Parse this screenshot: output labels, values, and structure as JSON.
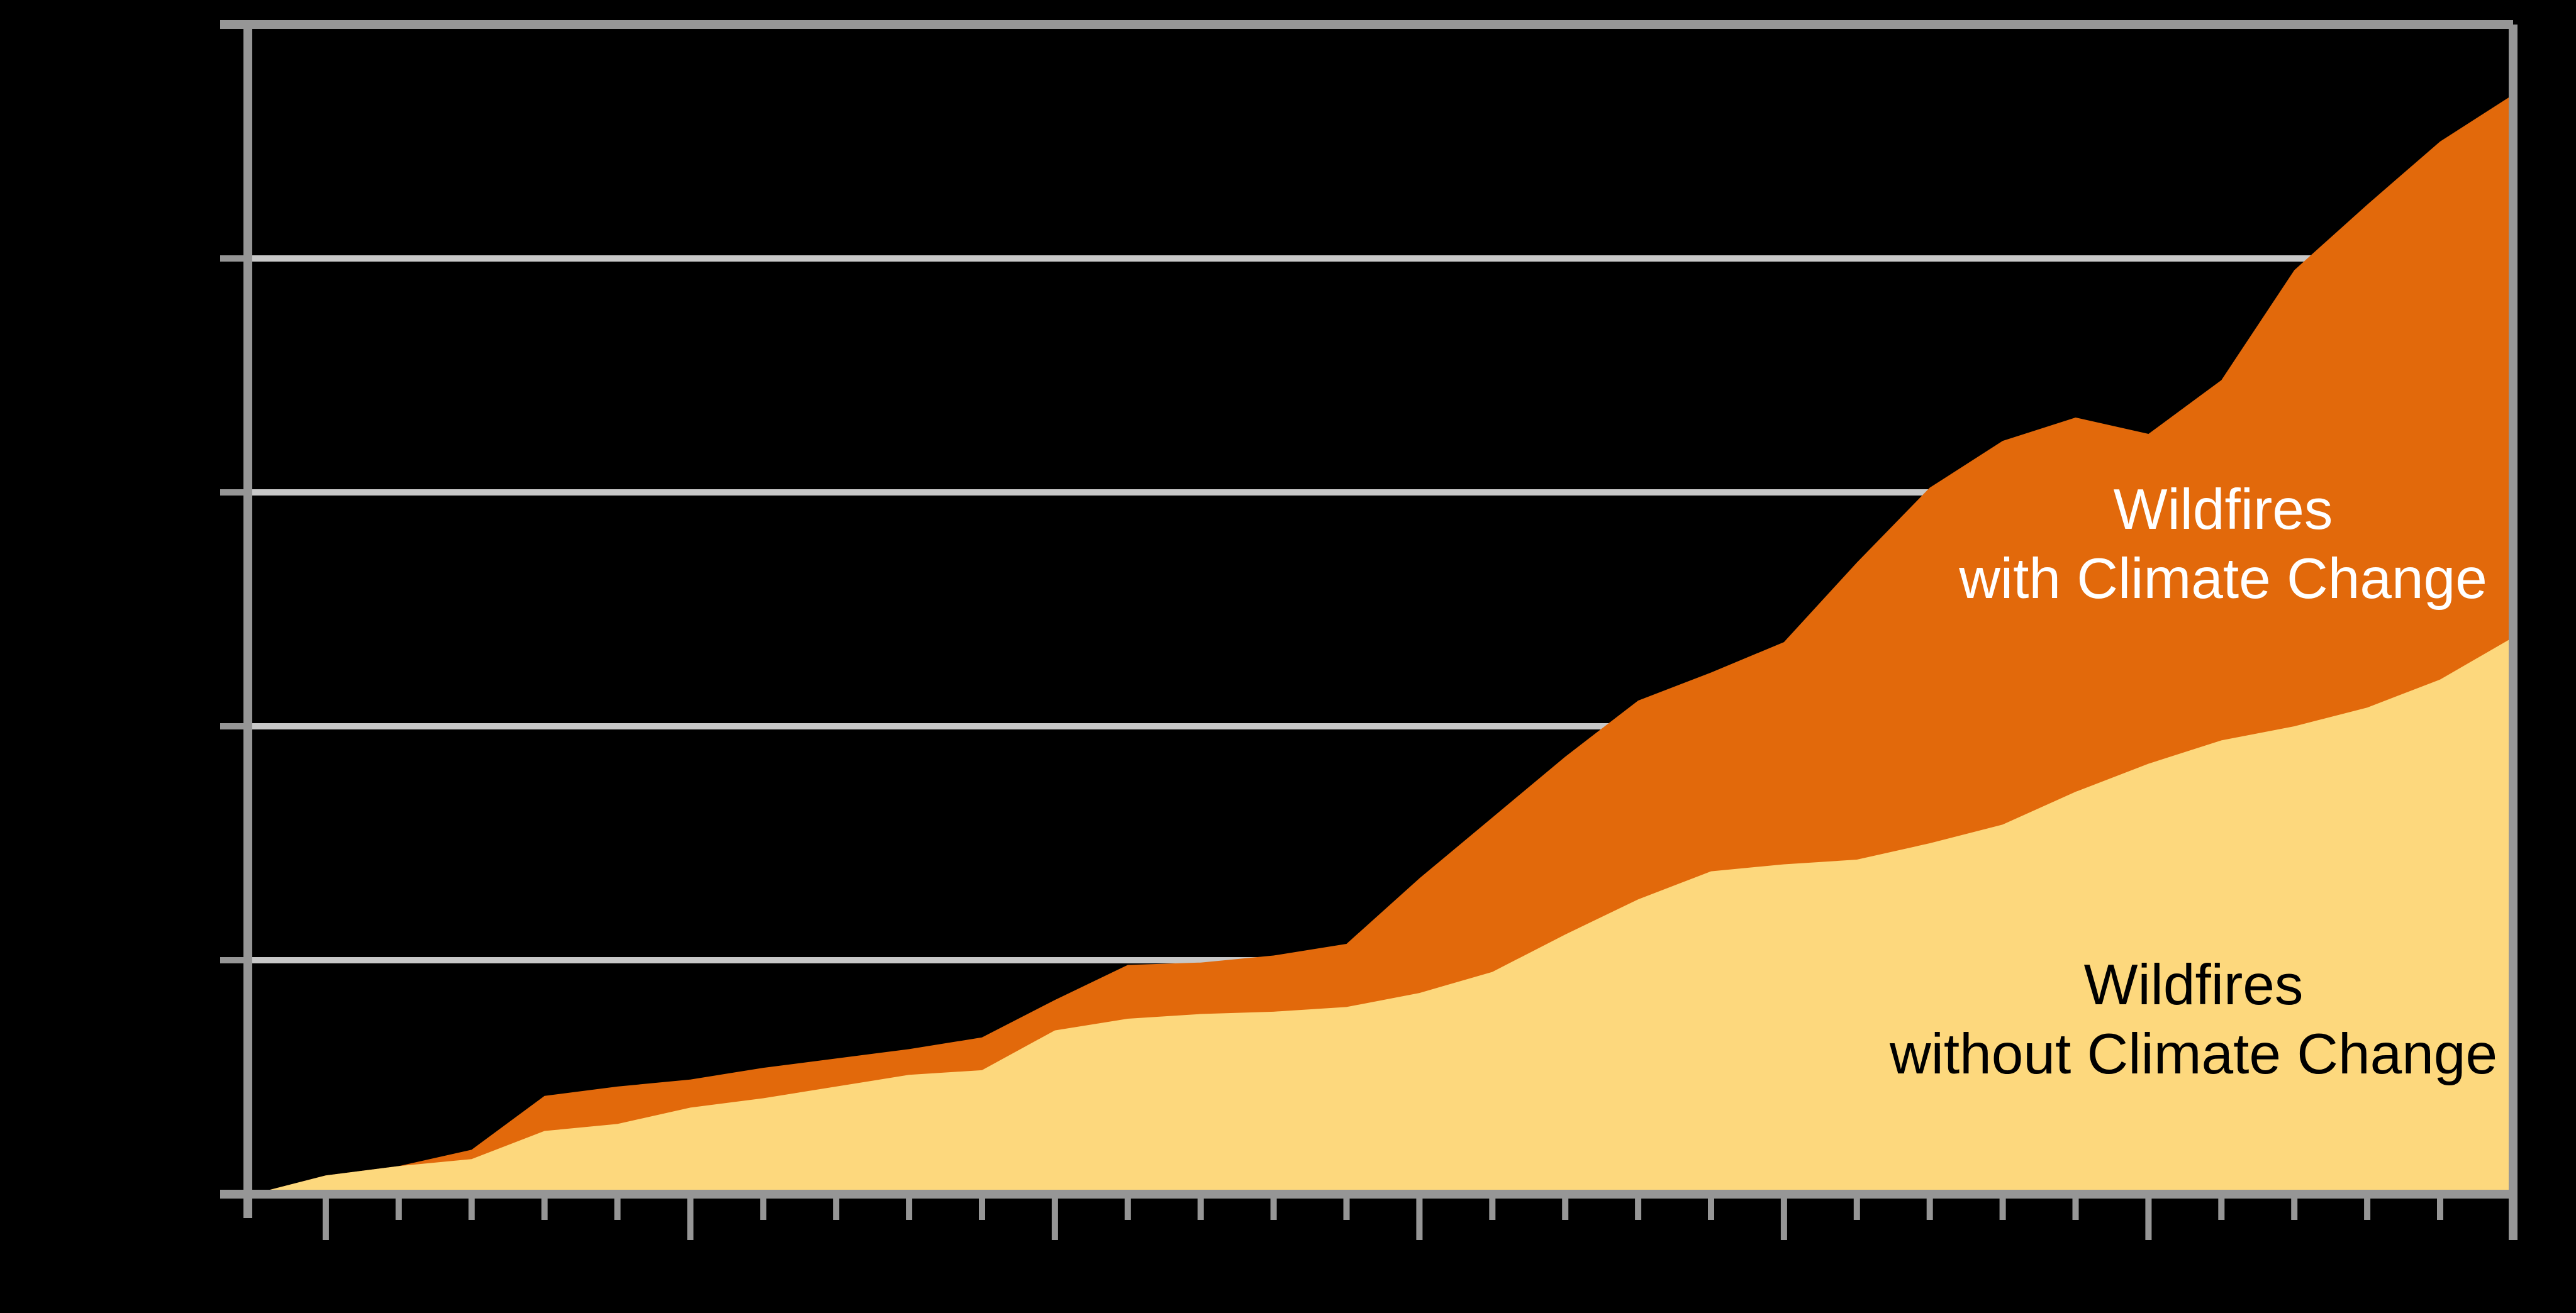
{
  "page": {
    "background_color": "#000000",
    "title": "",
    "visible_text_note": "no axis tick labels or title are visible in the image"
  },
  "chart_data": {
    "type": "area",
    "title": "",
    "xlabel": "",
    "ylabel": "",
    "x": [
      0,
      1,
      2,
      3,
      4,
      5,
      6,
      7,
      8,
      9,
      10,
      11,
      12,
      13,
      14,
      15,
      16,
      17,
      18,
      19,
      20,
      21,
      22,
      23,
      24,
      25,
      26,
      27,
      28,
      29,
      30,
      31
    ],
    "x_axis": {
      "tick_count": 32,
      "major_tick_indices": [
        1,
        6,
        11,
        16,
        21,
        26,
        31
      ],
      "minor_ticks_per_major": 5,
      "tick_labels_visible": false
    },
    "y_axis": {
      "ylim": [
        0,
        5
      ],
      "gridline_values": [
        1,
        2,
        3,
        4
      ],
      "tick_values": [
        0,
        1,
        2,
        3,
        4,
        5
      ],
      "tick_labels_visible": false
    },
    "grid": "horizontal-on",
    "legend_position": "in-plot annotations",
    "series": [
      {
        "name": "Wildfires with Climate Change",
        "color": "#E2690B",
        "values": [
          0,
          0.08,
          0.12,
          0.19,
          0.42,
          0.46,
          0.49,
          0.54,
          0.58,
          0.62,
          0.67,
          0.83,
          0.98,
          0.99,
          1.02,
          1.07,
          1.35,
          1.61,
          1.87,
          2.11,
          2.23,
          2.36,
          2.7,
          3.02,
          3.22,
          3.32,
          3.25,
          3.48,
          3.95,
          4.23,
          4.5,
          4.7
        ]
      },
      {
        "name": "Wildfires without Climate Change",
        "color": "#FDD87D",
        "values": [
          0,
          0.08,
          0.12,
          0.15,
          0.27,
          0.3,
          0.37,
          0.41,
          0.46,
          0.51,
          0.53,
          0.7,
          0.75,
          0.77,
          0.78,
          0.8,
          0.86,
          0.95,
          1.11,
          1.26,
          1.38,
          1.41,
          1.43,
          1.5,
          1.58,
          1.72,
          1.84,
          1.94,
          2.0,
          2.08,
          2.2,
          2.38
        ]
      }
    ],
    "annotations": [
      {
        "id": "with-climate-change-label",
        "line1": "Wildfires",
        "line2": "with Climate Change",
        "text_color": "#FFFFFF",
        "on_area": "Wildfires with Climate Change"
      },
      {
        "id": "without-climate-change-label",
        "line1": "Wildfires",
        "line2": "without Climate Change",
        "text_color": "#000000",
        "on_area": "Wildfires without Climate Change"
      }
    ],
    "frame_color": "#969696",
    "gridline_color": "#C8C8C8",
    "background_color": "#000000"
  }
}
